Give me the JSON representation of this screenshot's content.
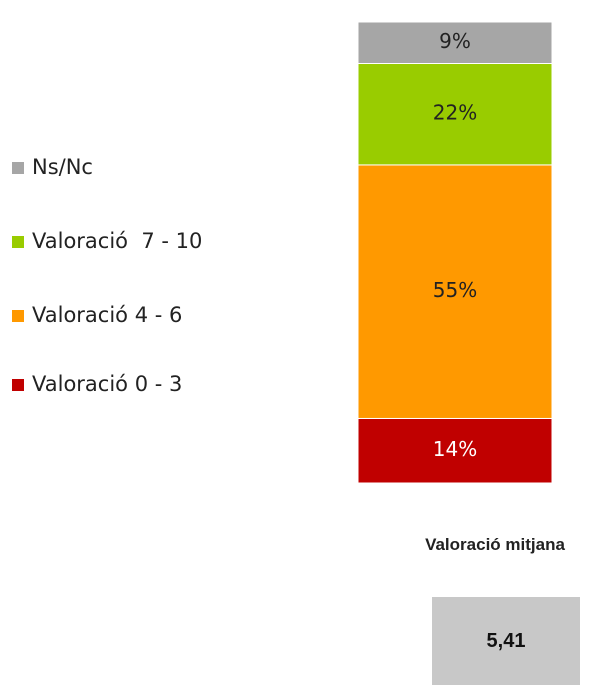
{
  "chart_data": {
    "type": "stacked_bar",
    "series": [
      {
        "name": "Valoració 0 - 3",
        "color": "#c00000",
        "values": [
          14
        ],
        "value_labels": [
          "14%"
        ]
      },
      {
        "name": "Valoració 4 - 6",
        "color": "#ff9900",
        "values": [
          55
        ],
        "value_labels": [
          "55%"
        ]
      },
      {
        "name": "Valoració  7 - 10",
        "color": "#99cc00",
        "values": [
          22
        ],
        "value_labels": [
          "22%"
        ]
      },
      {
        "name": "Ns/Nc",
        "color": "#a6a6a6",
        "values": [
          9
        ],
        "value_labels": [
          "9%"
        ]
      }
    ]
  },
  "summary": {
    "title": "Valoració mitjana",
    "value": "5,41"
  }
}
